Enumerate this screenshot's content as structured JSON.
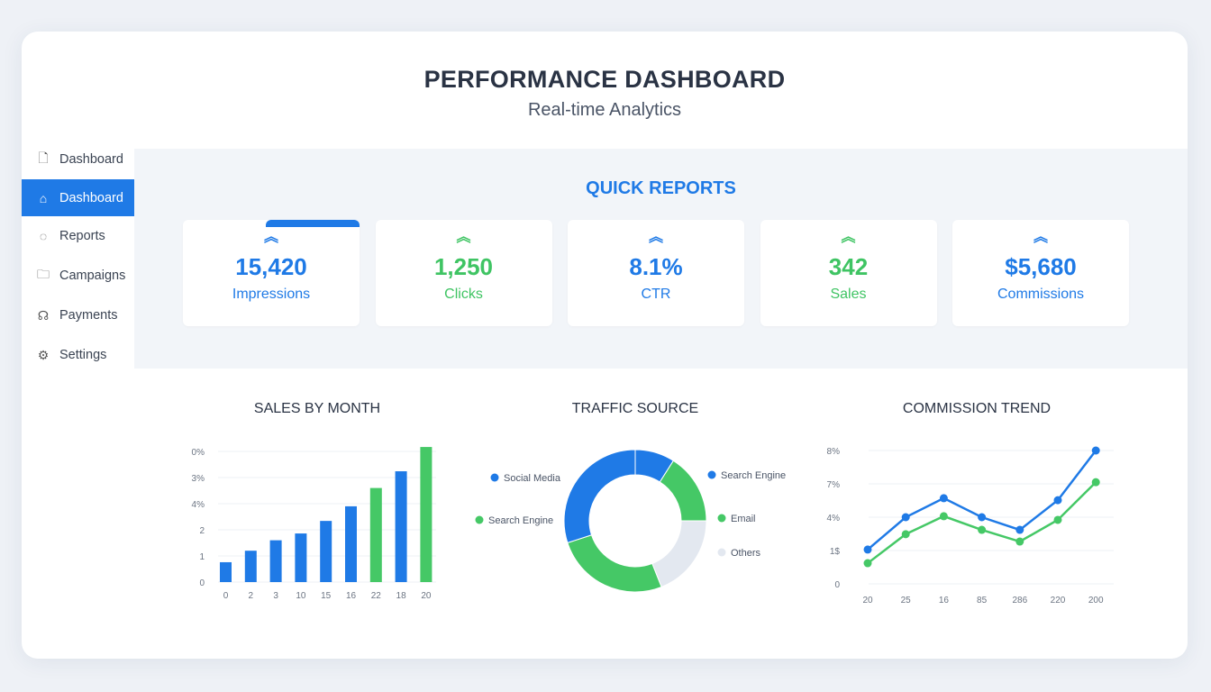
{
  "header": {
    "title": "PERFORMANCE DASHBOARD",
    "subtitle": "Real-time Analytics"
  },
  "sidebar": {
    "items": [
      {
        "label": "Dashboard",
        "icon": "document-icon",
        "active": false
      },
      {
        "label": "Dashboard",
        "icon": "home-icon",
        "active": true
      },
      {
        "label": "Reports",
        "icon": "chat-icon",
        "active": false
      },
      {
        "label": "Campaigns",
        "icon": "folder-icon",
        "active": false
      },
      {
        "label": "Payments",
        "icon": "hand-icon",
        "active": false
      },
      {
        "label": "Settings",
        "icon": "gear-icon",
        "active": false
      }
    ]
  },
  "quick_reports": {
    "title": "QUICK REPORTS",
    "cards": [
      {
        "value": "15,420",
        "label": "Impressions",
        "color": "#1f7ae6",
        "icon": "double-chevron-up-icon"
      },
      {
        "value": "1,250",
        "label": "Clicks",
        "color": "#3fc463",
        "icon": "double-chevron-up-icon"
      },
      {
        "value": "8.1%",
        "label": "CTR",
        "color": "#1f7ae6",
        "icon": "double-chevron-up-icon"
      },
      {
        "value": "342",
        "label": "Sales",
        "color": "#3fc463",
        "icon": "double-chevron-up-icon"
      },
      {
        "value": "$5,680",
        "label": "Commissions",
        "color": "#1f7ae6",
        "icon": "double-chevron-up-icon"
      }
    ]
  },
  "colors": {
    "blue": "#1f7ae6",
    "green": "#45c866",
    "gray": "#e3e8f0"
  },
  "chart_data": [
    {
      "type": "bar",
      "title": "SALES BY MONTH",
      "ytick_labels": [
        "0",
        "1",
        "2",
        "4%",
        "3%",
        "0%"
      ],
      "categories": [
        "0",
        "2",
        "3",
        "10",
        "15",
        "16",
        "22",
        "18",
        "20"
      ],
      "values": [
        0.76,
        1.2,
        1.6,
        1.86,
        2.34,
        2.9,
        3.6,
        4.24,
        5.17
      ],
      "bar_colors": [
        "blue",
        "blue",
        "blue",
        "blue",
        "blue",
        "blue",
        "green",
        "blue",
        "green"
      ],
      "ylim": [
        0,
        5
      ],
      "grid": true
    },
    {
      "type": "pie",
      "title": "TRAFFIC SOURCE",
      "donut": true,
      "slices": [
        {
          "label": "Search Engine",
          "value": 9,
          "color": "blue"
        },
        {
          "label": "Email",
          "value": 16,
          "color": "green"
        },
        {
          "label": "Others",
          "value": 19,
          "color": "gray"
        },
        {
          "label": "Search Engine",
          "value": 26,
          "color": "green"
        },
        {
          "label": "Social Media",
          "value": 30,
          "color": "blue"
        }
      ],
      "legend_left": [
        {
          "label": "Social Media",
          "color": "blue"
        },
        {
          "label": "Search Engine",
          "color": "green"
        }
      ],
      "legend_right": [
        {
          "label": "Search Engine",
          "color": "blue"
        },
        {
          "label": "Email",
          "color": "green"
        },
        {
          "label": "Others",
          "color": "gray"
        }
      ]
    },
    {
      "type": "line",
      "title": "COMMISSION TREND",
      "ytick_labels": [
        "0",
        "1$",
        "4%",
        "7%",
        "8%"
      ],
      "categories": [
        "20",
        "25",
        "16",
        "85",
        "286",
        "220",
        "200"
      ],
      "ylim": [
        0,
        4
      ],
      "grid": true,
      "series": [
        {
          "color": "blue",
          "values": [
            1.03,
            2.0,
            2.57,
            2.0,
            1.62,
            2.51,
            4.0
          ]
        },
        {
          "color": "green",
          "values": [
            0.62,
            1.49,
            2.03,
            1.62,
            1.27,
            1.92,
            3.05
          ]
        }
      ]
    }
  ]
}
